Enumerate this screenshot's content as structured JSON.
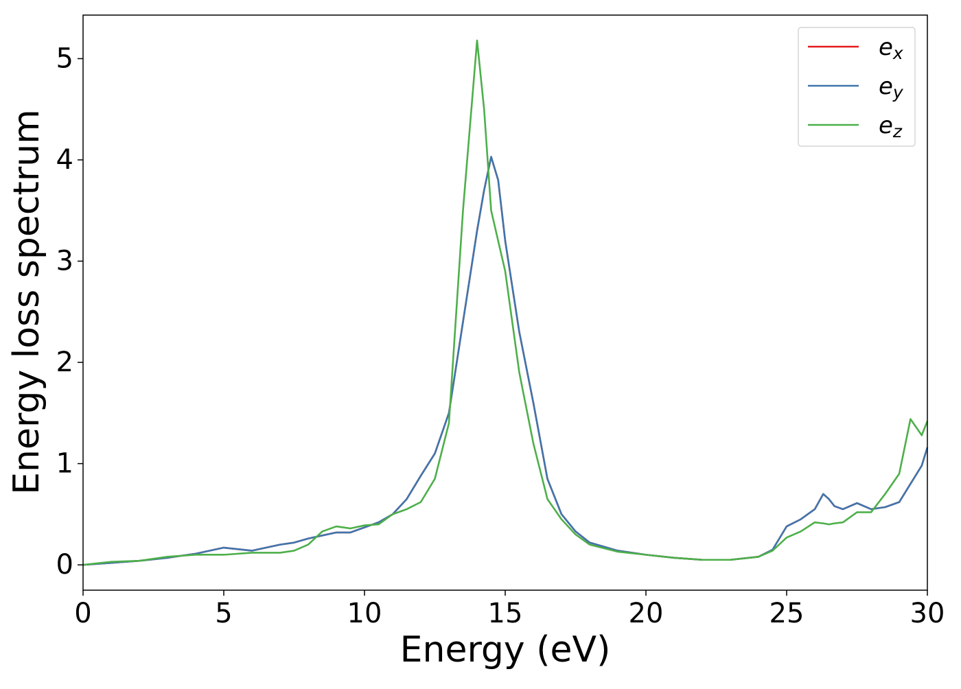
{
  "chart_data": {
    "type": "line",
    "xlabel": "Energy (eV)",
    "ylabel": "Energy loss spectrum",
    "x": [
      0,
      1,
      2,
      3,
      4,
      5,
      6,
      7,
      7.5,
      8,
      8.5,
      9,
      9.5,
      10,
      10.5,
      11,
      11.5,
      12,
      12.5,
      13,
      13.5,
      14,
      14.25,
      14.5,
      14.75,
      15,
      15.5,
      16,
      16.5,
      17,
      17.5,
      18,
      19,
      20,
      21,
      22,
      23,
      24,
      24.5,
      25,
      25.5,
      26,
      26.3,
      26.5,
      26.7,
      27,
      27.5,
      28,
      28.5,
      29,
      29.4,
      29.8,
      30
    ],
    "series": [
      {
        "name": "e_x",
        "color": "#e41a1c",
        "values": [
          0,
          0.02,
          0.04,
          0.07,
          0.11,
          0.17,
          0.14,
          0.2,
          0.22,
          0.26,
          0.29,
          0.32,
          0.32,
          0.37,
          0.42,
          0.5,
          0.65,
          0.88,
          1.1,
          1.5,
          2.4,
          3.3,
          3.7,
          4.03,
          3.8,
          3.2,
          2.3,
          1.6,
          0.85,
          0.5,
          0.33,
          0.22,
          0.14,
          0.1,
          0.07,
          0.05,
          0.05,
          0.08,
          0.15,
          0.38,
          0.45,
          0.55,
          0.7,
          0.65,
          0.58,
          0.55,
          0.61,
          0.55,
          0.57,
          0.62,
          0.8,
          0.98,
          1.16
        ]
      },
      {
        "name": "e_y",
        "color": "#3f76ad",
        "values": [
          0,
          0.02,
          0.04,
          0.07,
          0.11,
          0.17,
          0.14,
          0.2,
          0.22,
          0.26,
          0.29,
          0.32,
          0.32,
          0.37,
          0.42,
          0.5,
          0.65,
          0.88,
          1.1,
          1.5,
          2.4,
          3.3,
          3.7,
          4.03,
          3.8,
          3.2,
          2.3,
          1.6,
          0.85,
          0.5,
          0.33,
          0.22,
          0.14,
          0.1,
          0.07,
          0.05,
          0.05,
          0.08,
          0.15,
          0.38,
          0.45,
          0.55,
          0.7,
          0.65,
          0.58,
          0.55,
          0.61,
          0.55,
          0.57,
          0.62,
          0.8,
          0.98,
          1.16
        ]
      },
      {
        "name": "e_z",
        "color": "#4daf4a",
        "values": [
          0,
          0.03,
          0.04,
          0.08,
          0.1,
          0.1,
          0.12,
          0.12,
          0.14,
          0.2,
          0.33,
          0.38,
          0.36,
          0.39,
          0.4,
          0.5,
          0.55,
          0.62,
          0.85,
          1.4,
          3.5,
          5.18,
          4.5,
          3.5,
          3.2,
          2.9,
          1.9,
          1.2,
          0.65,
          0.45,
          0.3,
          0.2,
          0.13,
          0.1,
          0.07,
          0.05,
          0.05,
          0.08,
          0.14,
          0.27,
          0.33,
          0.42,
          0.41,
          0.4,
          0.41,
          0.42,
          0.52,
          0.52,
          0.7,
          0.9,
          1.44,
          1.28,
          1.42
        ]
      }
    ],
    "xlim": [
      0,
      30
    ],
    "xticks": [
      0,
      5,
      10,
      15,
      20,
      25,
      30
    ],
    "ylim": [
      -0.25,
      5.43
    ],
    "yticks": [
      0,
      1,
      2,
      3,
      4,
      5
    ],
    "legend": "upper right"
  }
}
